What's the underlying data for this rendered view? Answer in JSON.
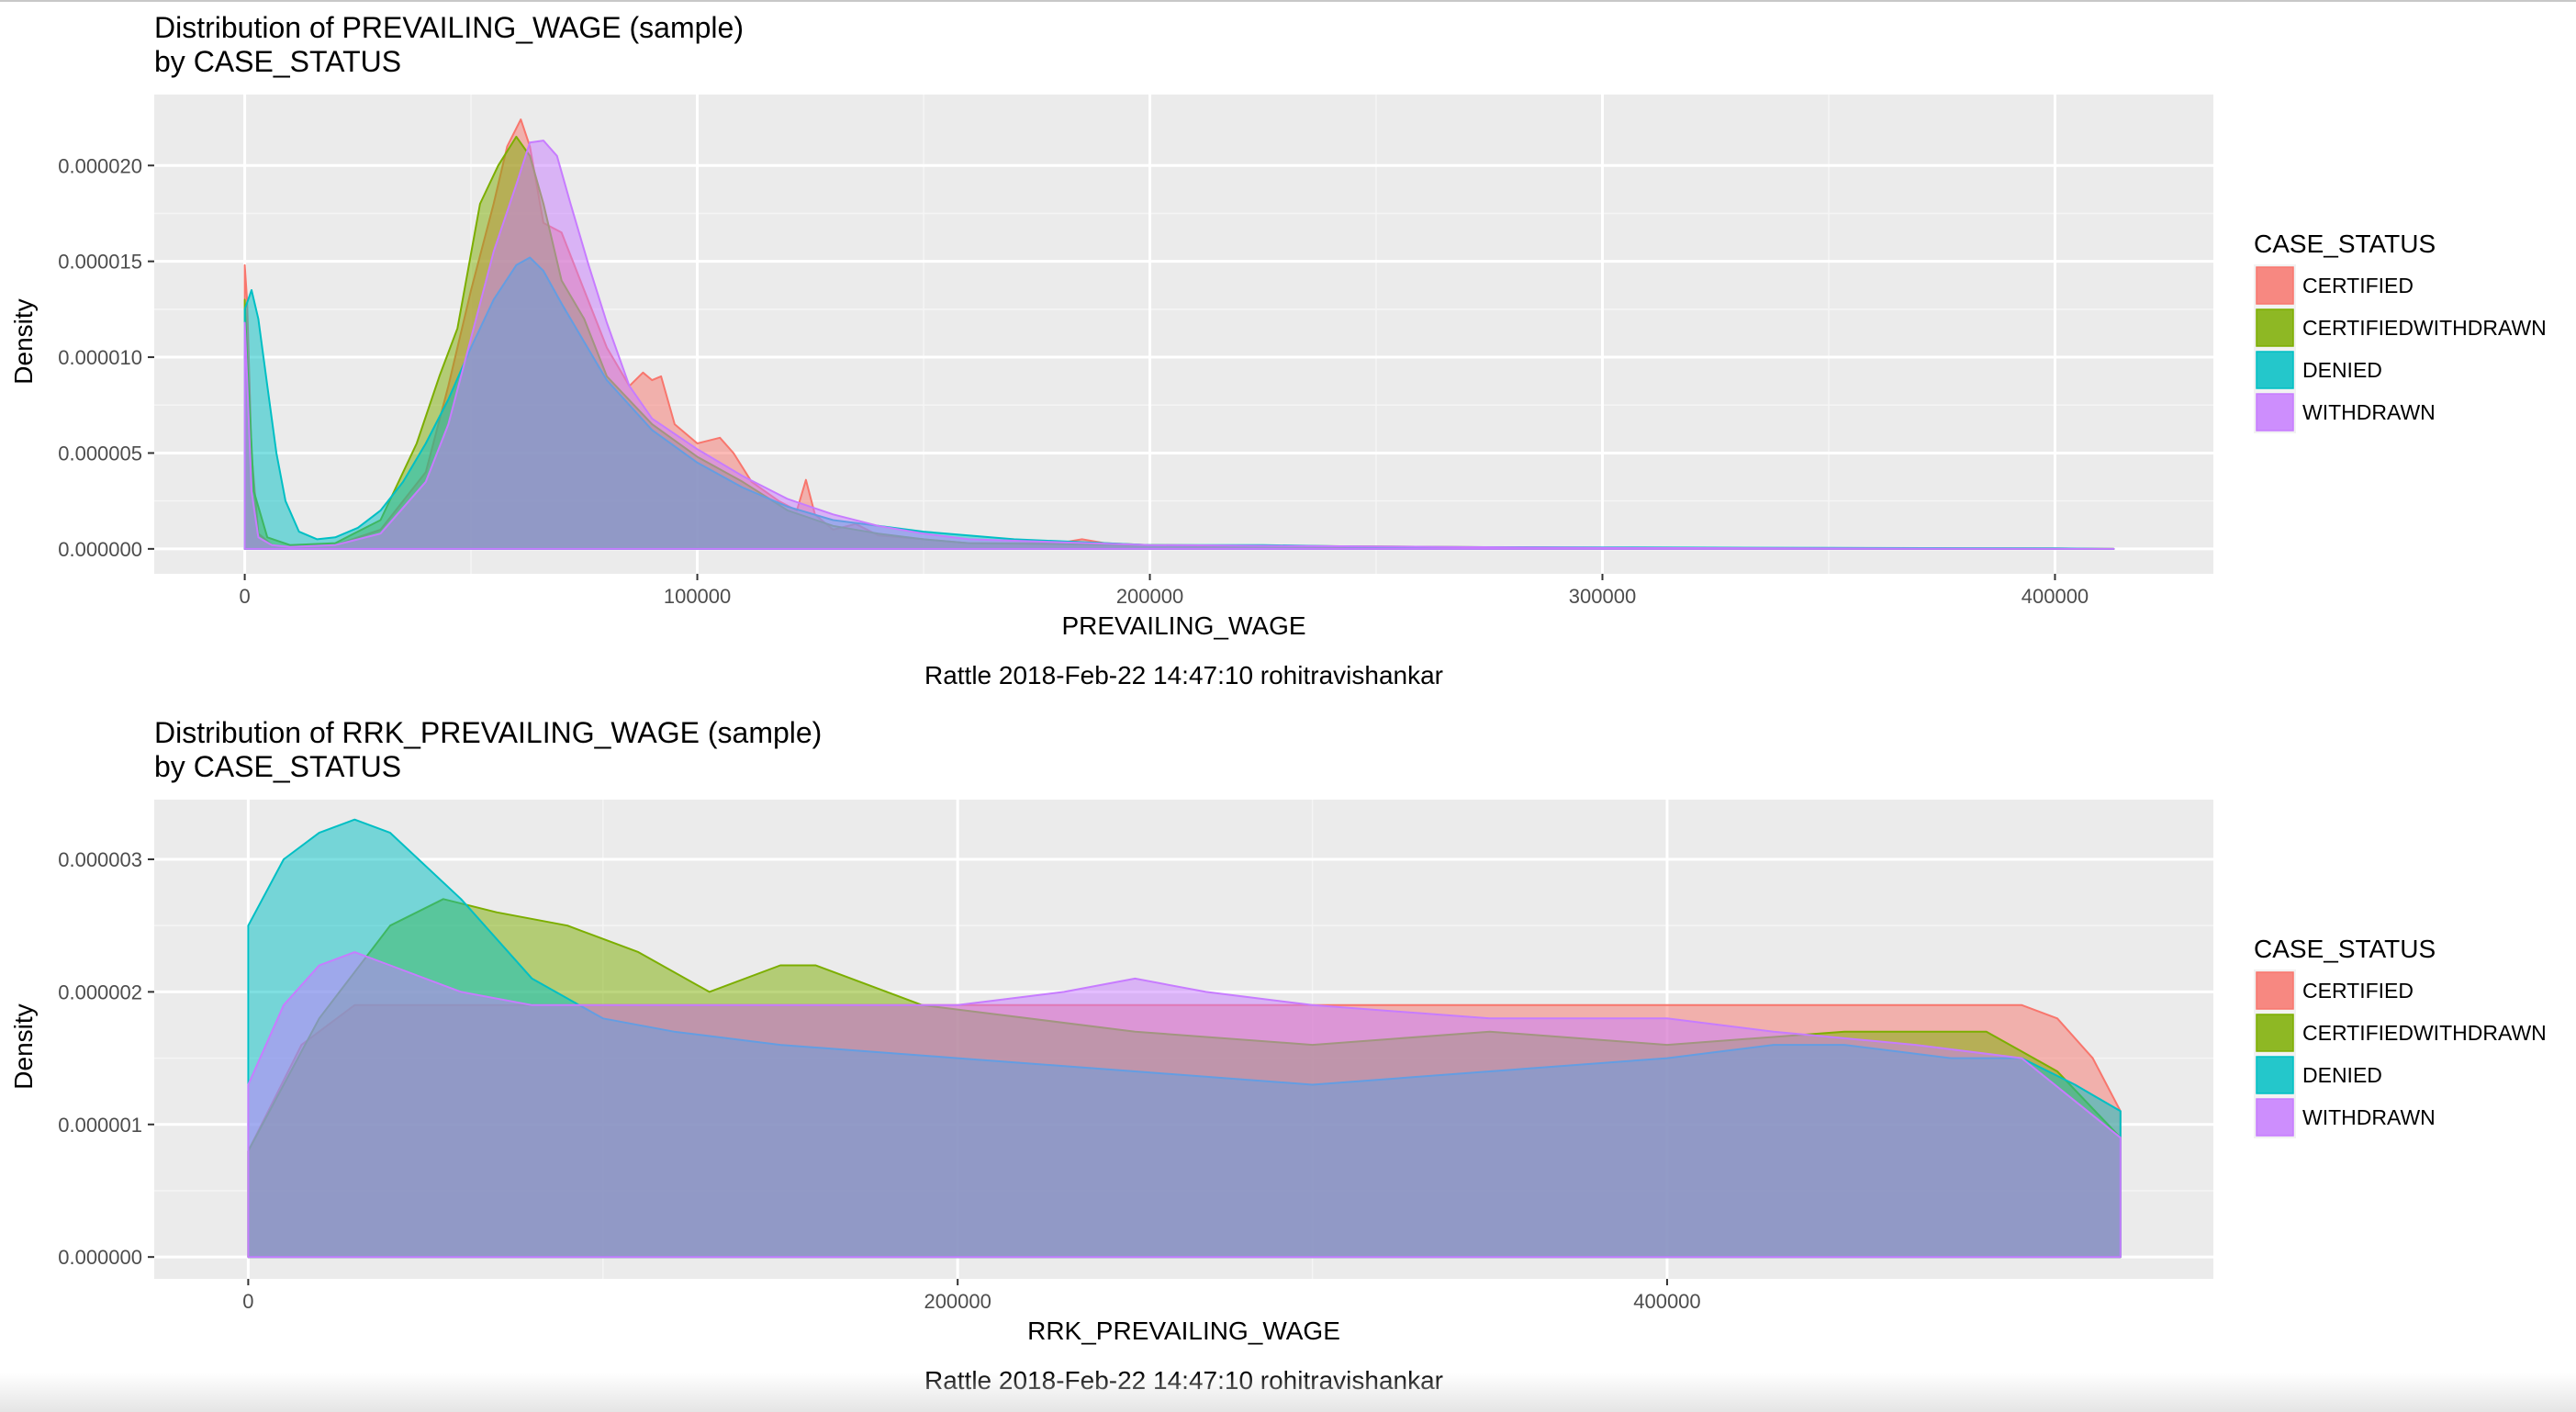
{
  "chart_data": [
    {
      "type": "area",
      "title": "Distribution of PREVAILING_WAGE (sample)",
      "subtitle": "by CASE_STATUS",
      "xlabel": "PREVAILING_WAGE",
      "ylabel": "Density",
      "xlim": [
        -20000,
        435000
      ],
      "ylim": [
        -1.3e-06,
        2.37e-05
      ],
      "x_ticks": [
        0,
        100000,
        200000,
        300000,
        400000
      ],
      "x_tick_labels": [
        "0",
        "100000",
        "200000",
        "300000",
        "400000"
      ],
      "y_ticks": [
        0,
        5e-06,
        1e-05,
        1.5e-05,
        2e-05
      ],
      "y_tick_labels": [
        "0.000000",
        "0.000005",
        "0.000010",
        "0.000015",
        "0.000020"
      ],
      "caption": "Rattle 2018-Feb-22 14:47:10 rohitravishankar",
      "legend_title": "CASE_STATUS",
      "legend_position": "right",
      "grid": true,
      "series": [
        {
          "name": "CERTIFIED",
          "color": "#F8766D",
          "x": [
            0,
            500,
            1500,
            3000,
            6000,
            10000,
            20000,
            30000,
            40000,
            45000,
            50000,
            55000,
            58000,
            61000,
            63000,
            66000,
            70000,
            75000,
            80000,
            85000,
            88000,
            90000,
            92000,
            95000,
            100000,
            105000,
            108000,
            112000,
            118000,
            122000,
            124000,
            126000,
            130000,
            135000,
            140000,
            150000,
            160000,
            170000,
            180000,
            185000,
            190000,
            200000,
            250000,
            300000,
            350000,
            400000,
            413000
          ],
          "y": [
            1.48e-05,
            1.3e-05,
            5e-06,
            8e-07,
            2e-07,
            1e-07,
            2e-07,
            1e-06,
            4e-06,
            8.5e-06,
            1.35e-05,
            1.8e-05,
            2.1e-05,
            2.24e-05,
            2.1e-05,
            1.7e-05,
            1.65e-05,
            1.35e-05,
            1.05e-05,
            8.5e-06,
            9.2e-06,
            8.8e-06,
            9e-06,
            6.5e-06,
            5.5e-06,
            5.8e-06,
            5e-06,
            3.5e-06,
            2.5e-06,
            2e-06,
            3.6e-06,
            1.8e-06,
            1e-06,
            1.3e-06,
            7e-07,
            5e-07,
            3e-07,
            3e-07,
            3e-07,
            5e-07,
            3e-07,
            2e-07,
            1e-07,
            5e-08,
            3e-08,
            2e-08,
            0.0
          ]
        },
        {
          "name": "CERTIFIEDWITHDRAWN",
          "color": "#7CAE00",
          "x": [
            0,
            500,
            2000,
            5000,
            10000,
            20000,
            30000,
            38000,
            43000,
            47000,
            52000,
            56000,
            60000,
            63000,
            66000,
            70000,
            75000,
            80000,
            90000,
            100000,
            110000,
            120000,
            130000,
            140000,
            150000,
            160000,
            200000,
            300000,
            413000
          ],
          "y": [
            1.3e-05,
            1e-05,
            3e-06,
            6e-07,
            2e-07,
            3e-07,
            1.5e-06,
            5.5e-06,
            9e-06,
            1.15e-05,
            1.8e-05,
            2e-05,
            2.15e-05,
            2.05e-05,
            1.8e-05,
            1.4e-05,
            1.2e-05,
            9e-06,
            6.5e-06,
            4.8e-06,
            3.5e-06,
            2e-06,
            1.2e-06,
            8e-07,
            5e-07,
            3e-07,
            2e-07,
            5e-08,
            0.0
          ]
        },
        {
          "name": "DENIED",
          "color": "#00BFC4",
          "x": [
            0,
            1500,
            3000,
            5000,
            7000,
            9000,
            12000,
            16000,
            20000,
            25000,
            30000,
            35000,
            40000,
            45000,
            50000,
            55000,
            60000,
            63000,
            66000,
            70000,
            75000,
            80000,
            90000,
            100000,
            110000,
            120000,
            130000,
            140000,
            150000,
            170000,
            200000,
            225000,
            250000,
            300000,
            350000,
            400000,
            413000
          ],
          "y": [
            1.25e-05,
            1.35e-05,
            1.2e-05,
            8.5e-06,
            5e-06,
            2.5e-06,
            9e-07,
            5e-07,
            6e-07,
            1.1e-06,
            2e-06,
            3.5e-06,
            5.5e-06,
            7.8e-06,
            1.05e-05,
            1.3e-05,
            1.48e-05,
            1.52e-05,
            1.45e-05,
            1.28e-05,
            1.08e-05,
            8.8e-06,
            6.2e-06,
            4.5e-06,
            3.2e-06,
            2.2e-06,
            1.5e-06,
            1.2e-06,
            9e-07,
            5e-07,
            2e-07,
            2e-07,
            1e-07,
            8e-08,
            5e-08,
            3e-08,
            0.0
          ]
        },
        {
          "name": "WITHDRAWN",
          "color": "#C77CFF",
          "x": [
            0,
            500,
            1500,
            3000,
            6000,
            10000,
            20000,
            30000,
            40000,
            45000,
            50000,
            55000,
            60000,
            63000,
            66000,
            69000,
            72000,
            76000,
            80000,
            85000,
            90000,
            100000,
            110000,
            120000,
            130000,
            140000,
            150000,
            160000,
            200000,
            300000,
            413000
          ],
          "y": [
            1.18e-05,
            9e-06,
            3e-06,
            6e-07,
            2e-07,
            1e-07,
            2e-07,
            8e-07,
            3.5e-06,
            6.5e-06,
            1.1e-05,
            1.55e-05,
            1.9e-05,
            2.12e-05,
            2.13e-05,
            2.05e-05,
            1.8e-05,
            1.48e-05,
            1.18e-05,
            8.5e-06,
            6.8e-06,
            5.2e-06,
            3.8e-06,
            2.6e-06,
            1.8e-06,
            1.2e-06,
            8e-07,
            5e-07,
            2e-07,
            5e-08,
            0.0
          ]
        }
      ]
    },
    {
      "type": "area",
      "title": "Distribution of RRK_PREVAILING_WAGE (sample)",
      "subtitle": "by CASE_STATUS",
      "xlabel": "RRK_PREVAILING_WAGE",
      "ylabel": "Density",
      "xlim": [
        -26500,
        554000
      ],
      "ylim": [
        -1.65e-07,
        3.45e-06
      ],
      "x_ticks": [
        0,
        200000,
        400000
      ],
      "x_tick_labels": [
        "0",
        "200000",
        "400000"
      ],
      "y_ticks": [
        0,
        1e-06,
        2e-06,
        3e-06
      ],
      "y_tick_labels": [
        "0.000000",
        "0.000001",
        "0.000002",
        "0.000003"
      ],
      "caption": "Rattle 2018-Feb-22 14:47:10 rohitravishankar",
      "legend_title": "CASE_STATUS",
      "legend_position": "right",
      "grid": true,
      "series": [
        {
          "name": "CERTIFIED",
          "color": "#F8766D",
          "x": [
            0,
            15000,
            30000,
            60000,
            100000,
            150000,
            200000,
            300000,
            400000,
            450000,
            480000,
            500000,
            510000,
            520000,
            527800
          ],
          "y": [
            8e-07,
            1.6e-06,
            1.9e-06,
            1.9e-06,
            1.9e-06,
            1.9e-06,
            1.9e-06,
            1.9e-06,
            1.9e-06,
            1.9e-06,
            1.9e-06,
            1.9e-06,
            1.8e-06,
            1.5e-06,
            1.1e-06
          ]
        },
        {
          "name": "CERTIFIEDWITHDRAWN",
          "color": "#7CAE00",
          "x": [
            0,
            20000,
            40000,
            55000,
            70000,
            90000,
            110000,
            130000,
            150000,
            160000,
            170000,
            190000,
            250000,
            300000,
            350000,
            400000,
            450000,
            490000,
            510000,
            527800
          ],
          "y": [
            8e-07,
            1.8e-06,
            2.5e-06,
            2.7e-06,
            2.6e-06,
            2.5e-06,
            2.3e-06,
            2e-06,
            2.2e-06,
            2.2e-06,
            2.1e-06,
            1.9e-06,
            1.7e-06,
            1.6e-06,
            1.7e-06,
            1.6e-06,
            1.7e-06,
            1.7e-06,
            1.4e-06,
            9e-07
          ]
        },
        {
          "name": "DENIED",
          "color": "#00BFC4",
          "x": [
            0,
            10000,
            20000,
            30000,
            40000,
            60000,
            80000,
            100000,
            120000,
            150000,
            200000,
            250000,
            300000,
            350000,
            400000,
            430000,
            450000,
            480000,
            500000,
            515000,
            527800
          ],
          "y": [
            2.5e-06,
            3e-06,
            3.2e-06,
            3.3e-06,
            3.2e-06,
            2.7e-06,
            2.1e-06,
            1.8e-06,
            1.7e-06,
            1.6e-06,
            1.5e-06,
            1.4e-06,
            1.3e-06,
            1.4e-06,
            1.5e-06,
            1.6e-06,
            1.6e-06,
            1.5e-06,
            1.5e-06,
            1.3e-06,
            1.1e-06
          ]
        },
        {
          "name": "WITHDRAWN",
          "color": "#C77CFF",
          "x": [
            0,
            10000,
            20000,
            30000,
            40000,
            60000,
            80000,
            100000,
            130000,
            170000,
            200000,
            230000,
            250000,
            270000,
            300000,
            350000,
            400000,
            430000,
            470000,
            500000,
            527800
          ],
          "y": [
            1.3e-06,
            1.9e-06,
            2.2e-06,
            2.3e-06,
            2.2e-06,
            2e-06,
            1.9e-06,
            1.9e-06,
            1.9e-06,
            1.9e-06,
            1.9e-06,
            2e-06,
            2.1e-06,
            2e-06,
            1.9e-06,
            1.8e-06,
            1.8e-06,
            1.7e-06,
            1.6e-06,
            1.5e-06,
            9e-07
          ]
        }
      ]
    }
  ]
}
